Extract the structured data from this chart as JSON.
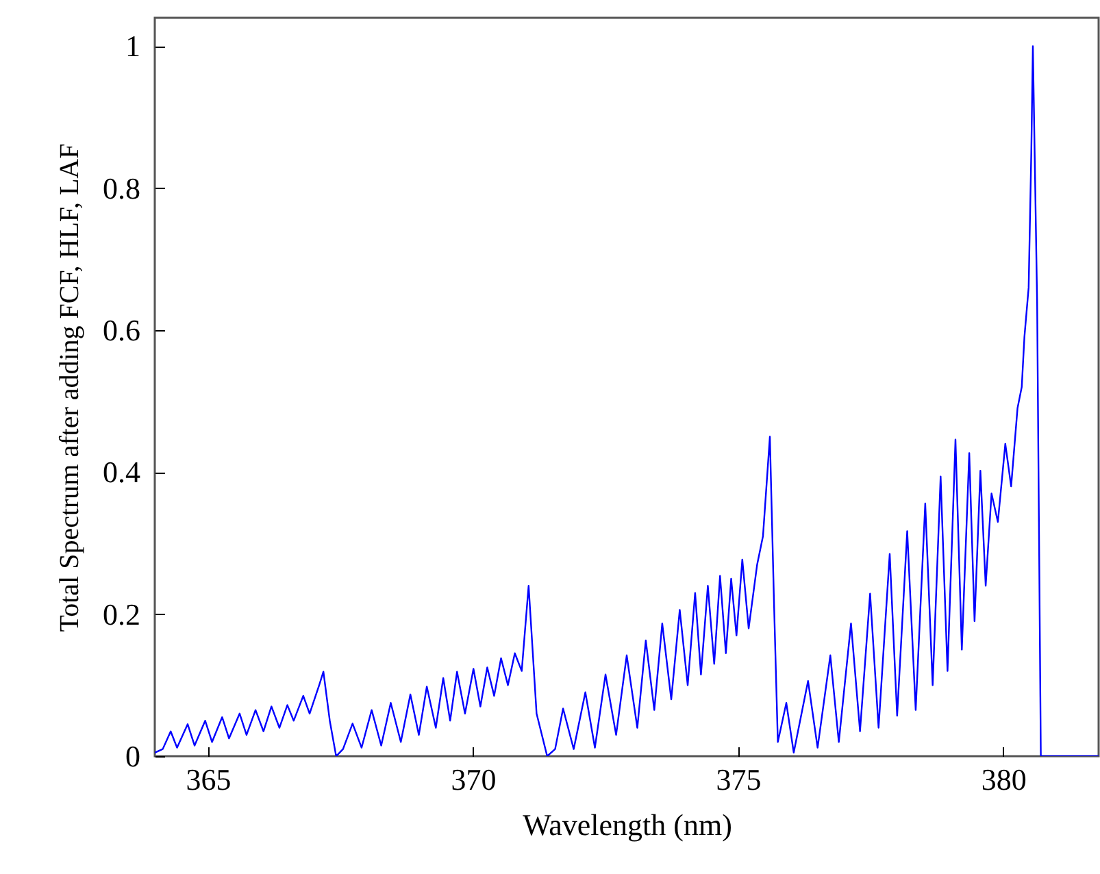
{
  "chart_data": {
    "type": "line",
    "xlabel": "Wavelength (nm)",
    "ylabel": "Total Spectrum after adding FCF, HLF, LAF",
    "xlim": [
      364,
      381.8
    ],
    "xticks": [
      365,
      370,
      375,
      380
    ],
    "ylim": [
      0,
      1.04
    ],
    "yticks": [
      0,
      0.2,
      0.4,
      0.6,
      0.8,
      1
    ],
    "grid": false,
    "line_style": "solid",
    "marker": "none",
    "series": [
      {
        "color": "#0000ff",
        "x": [
          364.0,
          364.15,
          364.3,
          364.42,
          364.62,
          364.75,
          364.95,
          365.08,
          365.27,
          365.4,
          365.6,
          365.73,
          365.9,
          366.05,
          366.2,
          366.35,
          366.5,
          366.62,
          366.8,
          366.92,
          367.1,
          367.18,
          367.3,
          367.42,
          367.55,
          367.73,
          367.9,
          368.09,
          368.27,
          368.45,
          368.64,
          368.82,
          368.98,
          369.13,
          369.3,
          369.44,
          369.57,
          369.7,
          369.85,
          370.01,
          370.14,
          370.27,
          370.4,
          370.53,
          370.66,
          370.79,
          370.92,
          371.05,
          371.2,
          371.4,
          371.55,
          371.7,
          371.9,
          372.12,
          372.3,
          372.5,
          372.7,
          372.9,
          373.1,
          373.26,
          373.42,
          373.57,
          373.74,
          373.9,
          374.05,
          374.19,
          374.3,
          374.43,
          374.55,
          374.66,
          374.77,
          374.87,
          374.97,
          375.08,
          375.2,
          375.36,
          375.47,
          375.6,
          375.68,
          375.75,
          375.91,
          376.05,
          376.32,
          376.5,
          376.74,
          376.9,
          377.13,
          377.3,
          377.49,
          377.65,
          377.86,
          378.0,
          378.19,
          378.35,
          378.53,
          378.67,
          378.82,
          378.95,
          379.1,
          379.22,
          379.36,
          379.46,
          379.57,
          379.67,
          379.78,
          379.9,
          380.04,
          380.15,
          380.27,
          380.35,
          380.4,
          380.48,
          380.53,
          380.56,
          380.64,
          380.71,
          380.75,
          381.8
        ],
        "values": [
          0.005,
          0.01,
          0.035,
          0.012,
          0.045,
          0.015,
          0.05,
          0.02,
          0.055,
          0.025,
          0.06,
          0.03,
          0.065,
          0.035,
          0.07,
          0.04,
          0.072,
          0.05,
          0.085,
          0.06,
          0.1,
          0.119,
          0.05,
          0.0,
          0.01,
          0.046,
          0.012,
          0.065,
          0.015,
          0.075,
          0.02,
          0.087,
          0.03,
          0.098,
          0.04,
          0.11,
          0.05,
          0.119,
          0.06,
          0.123,
          0.07,
          0.125,
          0.085,
          0.138,
          0.1,
          0.145,
          0.12,
          0.24,
          0.06,
          0.0,
          0.01,
          0.067,
          0.01,
          0.09,
          0.012,
          0.115,
          0.03,
          0.142,
          0.04,
          0.163,
          0.065,
          0.187,
          0.08,
          0.206,
          0.1,
          0.23,
          0.115,
          0.24,
          0.13,
          0.254,
          0.145,
          0.25,
          0.17,
          0.277,
          0.18,
          0.27,
          0.31,
          0.45,
          0.21,
          0.02,
          0.075,
          0.005,
          0.106,
          0.012,
          0.142,
          0.02,
          0.187,
          0.035,
          0.229,
          0.04,
          0.285,
          0.057,
          0.317,
          0.065,
          0.356,
          0.1,
          0.394,
          0.12,
          0.446,
          0.15,
          0.427,
          0.19,
          0.402,
          0.24,
          0.37,
          0.33,
          0.44,
          0.38,
          0.49,
          0.52,
          0.59,
          0.66,
          0.85,
          1.0,
          0.64,
          0.0,
          0.0,
          0.0
        ]
      }
    ]
  }
}
